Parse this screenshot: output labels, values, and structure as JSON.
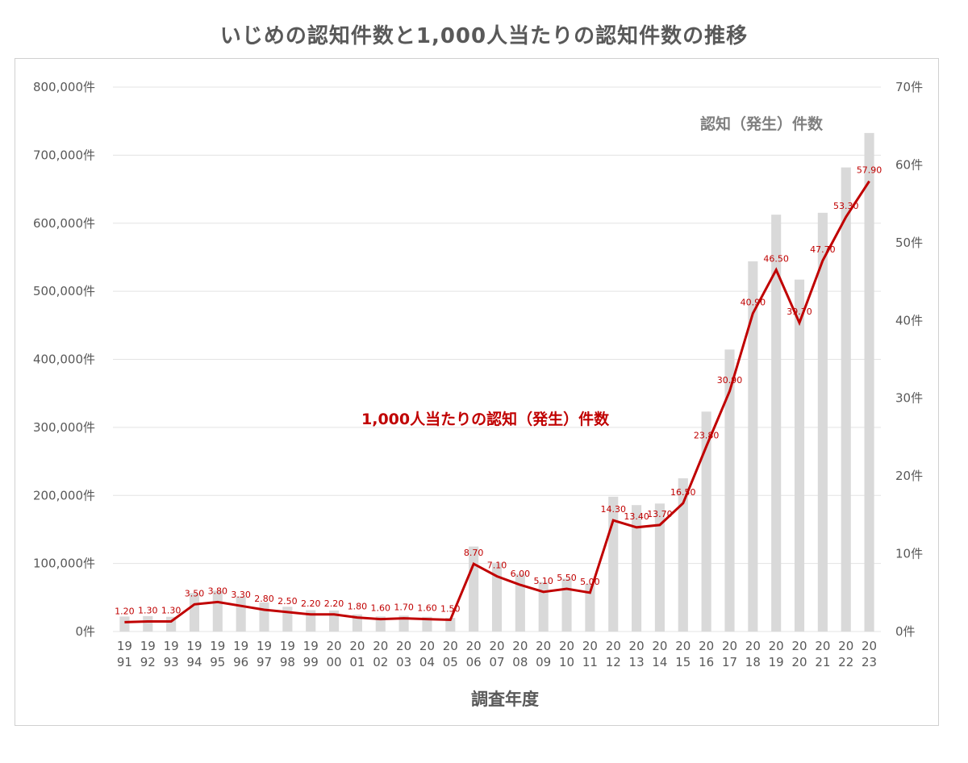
{
  "title": "いじめの認知件数と1,000人当たりの認知件数の推移",
  "chart_data": {
    "type": "bar+line",
    "title": "いじめの認知件数と1,000人当たりの認知件数の推移",
    "xlabel": "調査年度",
    "categories": [
      [
        "19",
        "91"
      ],
      [
        "19",
        "92"
      ],
      [
        "19",
        "93"
      ],
      [
        "19",
        "94"
      ],
      [
        "19",
        "95"
      ],
      [
        "19",
        "96"
      ],
      [
        "19",
        "97"
      ],
      [
        "19",
        "98"
      ],
      [
        "19",
        "99"
      ],
      [
        "20",
        "00"
      ],
      [
        "20",
        "01"
      ],
      [
        "20",
        "02"
      ],
      [
        "20",
        "03"
      ],
      [
        "20",
        "04"
      ],
      [
        "20",
        "05"
      ],
      [
        "20",
        "06"
      ],
      [
        "20",
        "07"
      ],
      [
        "20",
        "08"
      ],
      [
        "20",
        "09"
      ],
      [
        "20",
        "10"
      ],
      [
        "20",
        "11"
      ],
      [
        "20",
        "12"
      ],
      [
        "20",
        "13"
      ],
      [
        "20",
        "14"
      ],
      [
        "20",
        "15"
      ],
      [
        "20",
        "16"
      ],
      [
        "20",
        "17"
      ],
      [
        "20",
        "18"
      ],
      [
        "20",
        "19"
      ],
      [
        "20",
        "20"
      ],
      [
        "20",
        "21"
      ],
      [
        "20",
        "22"
      ],
      [
        "20",
        "23"
      ]
    ],
    "y_left": {
      "ylim": [
        0,
        800000
      ],
      "ticks": [
        "0件",
        "100,000件",
        "200,000件",
        "300,000件",
        "400,000件",
        "500,000件",
        "600,000件",
        "700,000件",
        "800,000件"
      ]
    },
    "y_right": {
      "ylim": [
        0,
        70
      ],
      "ticks": [
        "0件",
        "10件",
        "20件",
        "30件",
        "40件",
        "50件",
        "60件",
        "70件"
      ]
    },
    "grid": true,
    "series": [
      {
        "name": "認知（発生）件数",
        "type": "bar",
        "axis": "left",
        "color": "#d9d9d9",
        "values": [
          22062,
          22700,
          21600,
          56601,
          60096,
          51544,
          42790,
          36396,
          31359,
          30918,
          25037,
          22205,
          23351,
          21671,
          20143,
          124898,
          101097,
          84648,
          72778,
          77630,
          70231,
          198109,
          185803,
          188072,
          225132,
          323143,
          414378,
          543933,
          612496,
          517163,
          615351,
          681948,
          732568
        ]
      },
      {
        "name": "1,000人当たりの認知（発生）件数",
        "type": "line",
        "axis": "right",
        "color": "#c00000",
        "values": [
          1.2,
          1.3,
          1.3,
          3.5,
          3.8,
          3.3,
          2.8,
          2.5,
          2.2,
          2.2,
          1.8,
          1.6,
          1.7,
          1.6,
          1.5,
          8.7,
          7.1,
          6.0,
          5.1,
          5.5,
          5.0,
          14.3,
          13.4,
          13.7,
          16.5,
          23.8,
          30.9,
          40.9,
          46.5,
          39.7,
          47.7,
          53.3,
          57.9
        ],
        "labels": [
          "1.20",
          "1.30",
          "1.30",
          "3.50",
          "3.80",
          "3.30",
          "2.80",
          "2.50",
          "2.20",
          "2.20",
          "1.80",
          "1.60",
          "1.70",
          "1.60",
          "1.50",
          "8.70",
          "7.10",
          "6.00",
          "5.10",
          "5.50",
          "5.00",
          "14.30",
          "13.40",
          "13.70",
          "16.50",
          "23.80",
          "30.90",
          "40.90",
          "46.50",
          "39.70",
          "47.70",
          "53.30",
          "57.90"
        ]
      }
    ]
  }
}
